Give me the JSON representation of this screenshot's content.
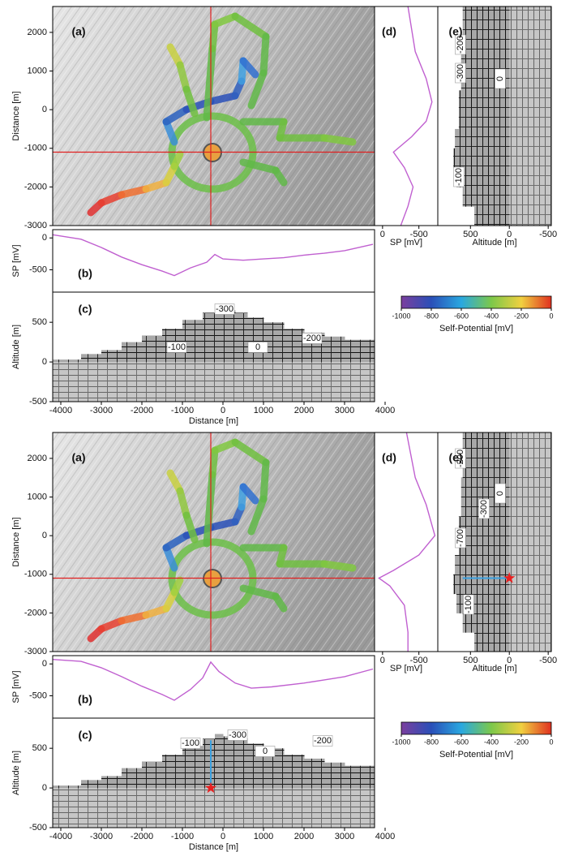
{
  "chart_data": [
    {
      "type": "map",
      "label": "(a)",
      "ylabel": "Distance [m]",
      "xlim": [
        -4200,
        3740
      ],
      "ylim": [
        -3000,
        2670
      ],
      "yticks": [
        -3000,
        -2000,
        -1000,
        0,
        1000,
        2000
      ],
      "crosshair": {
        "x": -300,
        "y": -1100
      }
    },
    {
      "type": "line",
      "label": "(b)",
      "ylabel": "SP [mV]",
      "orientation": "horizontal",
      "color": "#c060d0",
      "xlim": [
        -4200,
        3740
      ],
      "ylim": [
        -850,
        130
      ],
      "yticks": [
        -500,
        0
      ],
      "x": [
        -4200,
        -3500,
        -3000,
        -2500,
        -2000,
        -1500,
        -1200,
        -800,
        -400,
        -200,
        0,
        500,
        1000,
        1500,
        2000,
        2500,
        3000,
        3700
      ],
      "values": [
        50,
        -20,
        -150,
        -300,
        -420,
        -520,
        -590,
        -470,
        -380,
        -260,
        -330,
        -350,
        -330,
        -310,
        -270,
        -240,
        -200,
        -100
      ]
    },
    {
      "type": "section",
      "label": "(c)",
      "xlabel": "Distance [m]",
      "ylabel": "Altitude [m]",
      "orientation": "horizontal",
      "xlim": [
        -4200,
        3740
      ],
      "ylim": [
        -500,
        880
      ],
      "xticks": [
        -4000,
        -3000,
        -2000,
        -1000,
        0,
        1000,
        2000,
        3000,
        4000
      ],
      "yticks": [
        -500,
        0,
        500
      ],
      "x": [
        -4200,
        -3800,
        -3500,
        -3000,
        -2500,
        -2000,
        -1500,
        -1000,
        -500,
        -200,
        0,
        300,
        600,
        1000,
        1500,
        2000,
        2500,
        3000
      ],
      "values": [
        30,
        30,
        100,
        150,
        250,
        330,
        420,
        530,
        620,
        680,
        650,
        620,
        560,
        500,
        420,
        370,
        320,
        280
      ],
      "contour_labels": [
        "-300",
        "-100",
        "0",
        "-200"
      ]
    },
    {
      "type": "line",
      "label": "(d)",
      "xlabel": "SP [mV]",
      "orientation": "vertical",
      "color": "#c060d0",
      "xlim": [
        110,
        -760
      ],
      "ylim": [
        -3000,
        2670
      ],
      "xticks": [
        0,
        -500
      ],
      "y": [
        2670,
        1500,
        800,
        200,
        -300,
        -700,
        -1100,
        -1500,
        -2000,
        -2500,
        -3000
      ],
      "values": [
        -350,
        -450,
        -600,
        -680,
        -600,
        -400,
        -150,
        -300,
        -420,
        -350,
        -250
      ]
    },
    {
      "type": "section",
      "label": "(e)",
      "xlabel": "Altitude [m]",
      "orientation": "vertical",
      "xlim": [
        920,
        -540
      ],
      "ylim": [
        -3000,
        2670
      ],
      "xticks": [
        500,
        0,
        -500
      ],
      "y": [
        2670,
        1500,
        500,
        -500,
        -1000,
        -1500,
        -2000,
        -2500
      ],
      "values": [
        600,
        620,
        650,
        700,
        720,
        680,
        600,
        450
      ],
      "contour_labels": [
        "-200",
        "-300",
        "0",
        "-100"
      ]
    },
    {
      "type": "colorbar",
      "label": "Self-Potential [mV]",
      "xlim": [
        -1000,
        0
      ],
      "xticks": [
        -1000,
        -800,
        -600,
        -400,
        -200,
        0
      ],
      "colors": [
        "#7b3f9e",
        "#2a4fb8",
        "#2aa8e0",
        "#7cc84a",
        "#f0d040",
        "#e03020"
      ]
    },
    {
      "type": "map",
      "label": "(a)",
      "ylabel": "Distance [m]",
      "xlim": [
        -4200,
        3740
      ],
      "ylim": [
        -3000,
        2670
      ],
      "yticks": [
        -3000,
        -2000,
        -1000,
        0,
        1000,
        2000
      ],
      "crosshair": {
        "x": -300,
        "y": -1100
      }
    },
    {
      "type": "line",
      "label": "(b)",
      "ylabel": "SP [mV]",
      "orientation": "horizontal",
      "color": "#c060d0",
      "xlim": [
        -4200,
        3740
      ],
      "ylim": [
        -850,
        130
      ],
      "yticks": [
        -500,
        0
      ],
      "x": [
        -4200,
        -3500,
        -3000,
        -2500,
        -2000,
        -1500,
        -1200,
        -800,
        -500,
        -300,
        -100,
        300,
        700,
        1200,
        2000,
        2500,
        3000,
        3700
      ],
      "values": [
        70,
        40,
        -60,
        -200,
        -350,
        -480,
        -570,
        -400,
        -220,
        30,
        -120,
        -300,
        -380,
        -360,
        -300,
        -250,
        -200,
        -80
      ]
    },
    {
      "type": "section",
      "label": "(c)",
      "xlabel": "Distance [m]",
      "ylabel": "Altitude [m]",
      "orientation": "horizontal",
      "xlim": [
        -4200,
        3740
      ],
      "ylim": [
        -500,
        880
      ],
      "xticks": [
        -4000,
        -3000,
        -2000,
        -1000,
        0,
        1000,
        2000,
        3000,
        4000
      ],
      "yticks": [
        -500,
        0,
        500
      ],
      "x": [
        -4200,
        -3800,
        -3500,
        -3000,
        -2500,
        -2000,
        -1500,
        -1000,
        -500,
        -200,
        0,
        300,
        600,
        1000,
        1500,
        2000,
        2500,
        3000
      ],
      "values": [
        30,
        30,
        100,
        150,
        250,
        330,
        420,
        530,
        620,
        680,
        650,
        620,
        560,
        500,
        420,
        370,
        320,
        280
      ],
      "contour_labels": [
        "-300",
        "-100",
        "0",
        "-200"
      ],
      "source": {
        "distance": -300,
        "altitude": 0,
        "surface": 600
      }
    },
    {
      "type": "line",
      "label": "(d)",
      "xlabel": "SP [mV]",
      "orientation": "vertical",
      "color": "#c060d0",
      "xlim": [
        110,
        -760
      ],
      "ylim": [
        -3000,
        2670
      ],
      "xticks": [
        0,
        -500
      ],
      "y": [
        2670,
        1500,
        800,
        0,
        -500,
        -900,
        -1100,
        -1300,
        -1800,
        -2500,
        -3000
      ],
      "values": [
        -330,
        -450,
        -600,
        -720,
        -500,
        -150,
        50,
        -100,
        -300,
        -350,
        -350
      ]
    },
    {
      "type": "section",
      "label": "(e)",
      "xlabel": "Altitude [m]",
      "orientation": "vertical",
      "xlim": [
        920,
        -540
      ],
      "ylim": [
        -3000,
        2670
      ],
      "xticks": [
        500,
        0,
        -500
      ],
      "y": [
        2670,
        1500,
        500,
        -500,
        -1000,
        -1500,
        -2000,
        -2500
      ],
      "values": [
        600,
        620,
        650,
        700,
        720,
        680,
        600,
        450
      ],
      "contour_labels": [
        "-200",
        "0",
        "-300",
        "-700",
        "-100"
      ],
      "source": {
        "distance": -1100,
        "altitude": 0,
        "surface": 600
      }
    },
    {
      "type": "colorbar",
      "label": "Self-Potential [mV]",
      "xlim": [
        -1000,
        0
      ],
      "xticks": [
        -1000,
        -800,
        -600,
        -400,
        -200,
        0
      ],
      "colors": [
        "#7b3f9e",
        "#2a4fb8",
        "#2aa8e0",
        "#7cc84a",
        "#f0d040",
        "#e03020"
      ]
    }
  ]
}
